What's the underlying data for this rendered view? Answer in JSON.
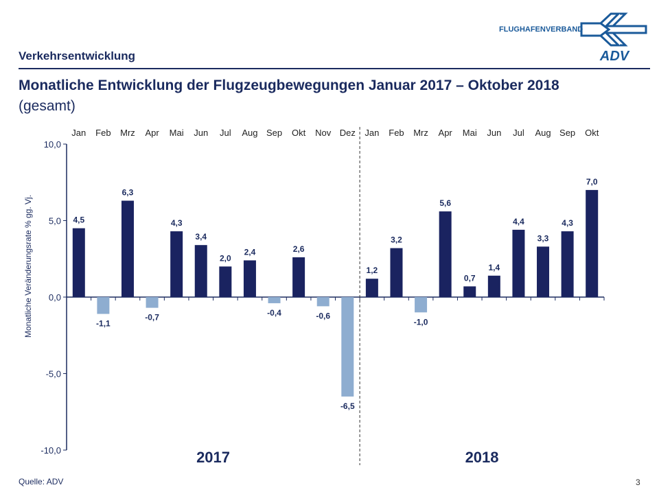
{
  "header": {
    "section": "Verkehrsentwicklung",
    "title": "Monatliche Entwicklung der Flugzeugbewegungen Januar 2017 – Oktober 2018",
    "subtitle": "(gesamt)",
    "logo_text": "FLUGHAFENVERBAND",
    "logo_mark": "ADV"
  },
  "footer": {
    "source": "Quelle: ADV",
    "page": "3"
  },
  "colors": {
    "positive": "#1a2360",
    "negative": "#8eadd0",
    "text": "#1a2a5e"
  },
  "chart_data": {
    "type": "bar",
    "categories": [
      "Jan",
      "Feb",
      "Mrz",
      "Apr",
      "Mai",
      "Jun",
      "Jul",
      "Aug",
      "Sep",
      "Okt",
      "Nov",
      "Dez",
      "Jan",
      "Feb",
      "Mrz",
      "Apr",
      "Mai",
      "Jun",
      "Jul",
      "Aug",
      "Sep",
      "Okt"
    ],
    "values": [
      4.5,
      -1.1,
      6.3,
      -0.7,
      4.3,
      3.4,
      2.0,
      2.4,
      -0.4,
      2.6,
      -0.6,
      -6.5,
      1.2,
      3.2,
      -1.0,
      5.6,
      0.7,
      1.4,
      4.4,
      3.3,
      4.3,
      7.0
    ],
    "value_labels": [
      "4,5",
      "-1,1",
      "6,3",
      "-0,7",
      "4,3",
      "3,4",
      "2,0",
      "2,4",
      "-0,4",
      "2,6",
      "-0,6",
      "-6,5",
      "1,2",
      "3,2",
      "-1,0",
      "5,6",
      "0,7",
      "1,4",
      "4,4",
      "3,3",
      "4,3",
      "7,0"
    ],
    "groups": [
      {
        "label": "2017",
        "months": 12
      },
      {
        "label": "2018",
        "months": 10
      }
    ],
    "ylabel": "Monatliche Veränderungsrate % gg. Vj.",
    "ylim": [
      -10,
      10
    ],
    "yticks": [
      10,
      5,
      0,
      -5,
      -10
    ],
    "ytick_labels": [
      "10,0",
      "5,0",
      "0,0",
      "-5,0",
      "-10,0"
    ],
    "grid": false,
    "legend": "none"
  }
}
